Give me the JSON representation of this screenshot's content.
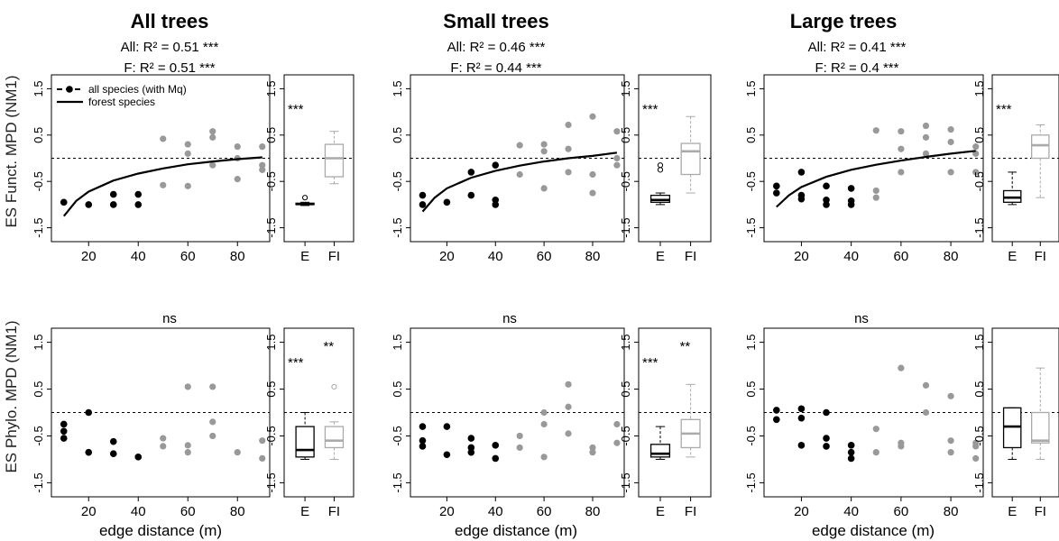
{
  "figure": {
    "ylabel_top": "ES Funct. MPD (NM1)",
    "ylabel_bottom": "ES Phylo. MPD (NM1)",
    "xlabel": "edge distance (m)",
    "legend": {
      "entries": [
        "all species (with Mq)",
        "forest species"
      ]
    }
  },
  "panels": [
    {
      "title": "All trees",
      "stats_all": "All: R² =  0.51 ***",
      "stats_f": "F: R² =  0.51 ***",
      "bottom_label": "ns",
      "box_sig_top": [
        "***",
        ""
      ],
      "box_sig_bottom": [
        "***",
        "**"
      ]
    },
    {
      "title": "Small trees",
      "stats_all": "All: R² =  0.46 ***",
      "stats_f": "F: R² =  0.44 ***",
      "bottom_label": "ns",
      "box_sig_top": [
        "***",
        ""
      ],
      "box_sig_bottom": [
        "***",
        "**"
      ]
    },
    {
      "title": "Large trees",
      "stats_all": "All: R² =  0.41 ***",
      "stats_f": "F: R² =  0.4 ***",
      "bottom_label": "ns",
      "box_sig_top": [
        "***",
        ""
      ],
      "box_sig_bottom": [
        "",
        ""
      ]
    }
  ],
  "chart_data": {
    "type": "scatter",
    "xlim": [
      5,
      93
    ],
    "ylim": [
      -1.8,
      1.8
    ],
    "xticks": [
      20,
      40,
      60,
      80
    ],
    "yticks": [
      -1.5,
      -0.5,
      0.5,
      1.5
    ],
    "ytick_labels": [
      "-1.5",
      "-0.5",
      "0.5",
      "1.5"
    ],
    "reference_line_y": 0,
    "box_categories": [
      "E",
      "FI"
    ],
    "colors": {
      "edge": "#000000",
      "interior": "#999999",
      "interior_box": "#aaaaaa"
    },
    "scatter": [
      {
        "top": {
          "edge": [
            [
              10,
              -0.95
            ],
            [
              20,
              -1.0
            ],
            [
              30,
              -0.78
            ],
            [
              30,
              -1.0
            ],
            [
              40,
              -0.78
            ],
            [
              40,
              -1.0
            ]
          ],
          "interior": [
            [
              50,
              0.42
            ],
            [
              50,
              -0.58
            ],
            [
              60,
              0.3
            ],
            [
              60,
              0.1
            ],
            [
              60,
              -0.6
            ],
            [
              70,
              0.58
            ],
            [
              70,
              0.45
            ],
            [
              70,
              -0.15
            ],
            [
              80,
              0.25
            ],
            [
              80,
              0.0
            ],
            [
              80,
              -0.45
            ],
            [
              90,
              0.25
            ],
            [
              90,
              -0.25
            ],
            [
              90,
              -0.15
            ]
          ],
          "curve": [
            [
              10,
              -1.25
            ],
            [
              15,
              -0.92
            ],
            [
              20,
              -0.72
            ],
            [
              30,
              -0.48
            ],
            [
              40,
              -0.33
            ],
            [
              50,
              -0.22
            ],
            [
              60,
              -0.13
            ],
            [
              70,
              -0.07
            ],
            [
              80,
              -0.02
            ],
            [
              90,
              0.02
            ]
          ]
        },
        "bottom": {
          "edge": [
            [
              10,
              -0.25
            ],
            [
              10,
              -0.4
            ],
            [
              10,
              -0.55
            ],
            [
              20,
              0.0
            ],
            [
              20,
              -0.85
            ],
            [
              30,
              -0.62
            ],
            [
              30,
              -0.88
            ],
            [
              40,
              -0.95
            ]
          ],
          "interior": [
            [
              50,
              -0.55
            ],
            [
              50,
              -0.72
            ],
            [
              60,
              0.55
            ],
            [
              60,
              -0.7
            ],
            [
              60,
              -0.85
            ],
            [
              70,
              0.55
            ],
            [
              70,
              -0.2
            ],
            [
              70,
              -0.5
            ],
            [
              80,
              -0.85
            ],
            [
              90,
              -0.6
            ],
            [
              90,
              -0.98
            ]
          ]
        }
      },
      {
        "top": {
          "edge": [
            [
              10,
              -0.8
            ],
            [
              10,
              -1.0
            ],
            [
              20,
              -0.95
            ],
            [
              30,
              -0.3
            ],
            [
              30,
              -0.8
            ],
            [
              40,
              -0.15
            ],
            [
              40,
              -0.9
            ],
            [
              40,
              -1.0
            ]
          ],
          "interior": [
            [
              50,
              0.28
            ],
            [
              50,
              -0.35
            ],
            [
              60,
              0.3
            ],
            [
              60,
              0.15
            ],
            [
              60,
              -0.65
            ],
            [
              70,
              0.72
            ],
            [
              70,
              0.2
            ],
            [
              70,
              -0.3
            ],
            [
              80,
              0.9
            ],
            [
              80,
              -0.35
            ],
            [
              80,
              -0.75
            ],
            [
              90,
              0.58
            ],
            [
              90,
              0.0
            ],
            [
              90,
              -0.15
            ]
          ],
          "curve": [
            [
              10,
              -1.15
            ],
            [
              15,
              -0.85
            ],
            [
              20,
              -0.65
            ],
            [
              30,
              -0.42
            ],
            [
              40,
              -0.27
            ],
            [
              50,
              -0.16
            ],
            [
              60,
              -0.07
            ],
            [
              70,
              0.0
            ],
            [
              80,
              0.05
            ],
            [
              90,
              0.12
            ]
          ]
        },
        "bottom": {
          "edge": [
            [
              10,
              -0.3
            ],
            [
              10,
              -0.6
            ],
            [
              10,
              -0.72
            ],
            [
              20,
              -0.3
            ],
            [
              20,
              -0.9
            ],
            [
              30,
              -0.55
            ],
            [
              30,
              -0.75
            ],
            [
              30,
              -0.85
            ],
            [
              40,
              -0.7
            ],
            [
              40,
              -0.98
            ]
          ],
          "interior": [
            [
              50,
              -0.5
            ],
            [
              50,
              -0.75
            ],
            [
              60,
              0.0
            ],
            [
              60,
              -0.25
            ],
            [
              60,
              -0.95
            ],
            [
              70,
              0.6
            ],
            [
              70,
              0.12
            ],
            [
              70,
              -0.45
            ],
            [
              80,
              -0.75
            ],
            [
              80,
              -0.85
            ],
            [
              90,
              -0.25
            ],
            [
              90,
              -0.65
            ]
          ]
        }
      },
      {
        "top": {
          "edge": [
            [
              10,
              -0.6
            ],
            [
              10,
              -0.75
            ],
            [
              20,
              -0.3
            ],
            [
              20,
              -0.8
            ],
            [
              20,
              -0.88
            ],
            [
              30,
              -0.6
            ],
            [
              30,
              -0.9
            ],
            [
              30,
              -1.0
            ],
            [
              40,
              -0.65
            ],
            [
              40,
              -0.92
            ],
            [
              40,
              -1.0
            ]
          ],
          "interior": [
            [
              50,
              0.6
            ],
            [
              50,
              -0.7
            ],
            [
              50,
              -0.85
            ],
            [
              60,
              0.58
            ],
            [
              60,
              0.2
            ],
            [
              60,
              -0.3
            ],
            [
              70,
              0.7
            ],
            [
              70,
              0.45
            ],
            [
              70,
              0.1
            ],
            [
              80,
              0.62
            ],
            [
              80,
              0.35
            ],
            [
              80,
              -0.3
            ],
            [
              90,
              0.25
            ],
            [
              90,
              0.1
            ],
            [
              90,
              -0.3
            ]
          ],
          "curve": [
            [
              10,
              -1.05
            ],
            [
              15,
              -0.8
            ],
            [
              20,
              -0.62
            ],
            [
              30,
              -0.4
            ],
            [
              40,
              -0.25
            ],
            [
              50,
              -0.14
            ],
            [
              60,
              -0.05
            ],
            [
              70,
              0.03
            ],
            [
              80,
              0.1
            ],
            [
              90,
              0.16
            ]
          ]
        },
        "bottom": {
          "edge": [
            [
              10,
              0.05
            ],
            [
              10,
              -0.15
            ],
            [
              20,
              0.08
            ],
            [
              20,
              -0.12
            ],
            [
              20,
              -0.7
            ],
            [
              30,
              0.0
            ],
            [
              30,
              -0.55
            ],
            [
              30,
              -0.72
            ],
            [
              40,
              -0.7
            ],
            [
              40,
              -0.85
            ],
            [
              40,
              -0.98
            ]
          ],
          "interior": [
            [
              50,
              -0.35
            ],
            [
              50,
              -0.85
            ],
            [
              60,
              0.95
            ],
            [
              60,
              -0.65
            ],
            [
              60,
              -0.72
            ],
            [
              70,
              0.58
            ],
            [
              70,
              0.0
            ],
            [
              80,
              0.35
            ],
            [
              80,
              -0.6
            ],
            [
              80,
              -0.85
            ],
            [
              90,
              -0.65
            ],
            [
              90,
              -0.72
            ],
            [
              90,
              -0.98
            ]
          ]
        }
      }
    ],
    "boxes": [
      {
        "top": {
          "E": {
            "min": -1.02,
            "q1": -1.0,
            "median": -0.99,
            "q3": -0.97,
            "max": -0.95,
            "outliers": [
              -0.85
            ]
          },
          "FI": {
            "min": -0.55,
            "q1": -0.4,
            "median": 0.0,
            "q3": 0.3,
            "max": 0.58,
            "outliers": []
          }
        },
        "bottom": {
          "E": {
            "min": -1.0,
            "q1": -0.95,
            "median": -0.8,
            "q3": -0.3,
            "max": 0.0,
            "outliers": []
          },
          "FI": {
            "min": -1.0,
            "q1": -0.75,
            "median": -0.6,
            "q3": -0.3,
            "max": -0.2,
            "outliers": [
              0.55
            ]
          }
        }
      },
      {
        "top": {
          "E": {
            "min": -1.0,
            "q1": -0.95,
            "median": -0.9,
            "q3": -0.8,
            "max": -0.75,
            "outliers": [
              -0.25,
              -0.15
            ]
          },
          "FI": {
            "min": -0.75,
            "q1": -0.35,
            "median": 0.15,
            "q3": 0.32,
            "max": 0.9,
            "outliers": []
          }
        },
        "bottom": {
          "E": {
            "min": -1.0,
            "q1": -0.95,
            "median": -0.88,
            "q3": -0.68,
            "max": -0.3,
            "outliers": []
          },
          "FI": {
            "min": -0.95,
            "q1": -0.75,
            "median": -0.45,
            "q3": -0.15,
            "max": 0.6,
            "outliers": []
          }
        }
      },
      {
        "top": {
          "E": {
            "min": -1.0,
            "q1": -0.95,
            "median": -0.85,
            "q3": -0.7,
            "max": -0.3,
            "outliers": []
          },
          "FI": {
            "min": -0.85,
            "q1": 0.0,
            "median": 0.28,
            "q3": 0.5,
            "max": 0.72,
            "outliers": []
          }
        },
        "bottom": {
          "E": {
            "min": -1.0,
            "q1": -0.75,
            "median": -0.3,
            "q3": 0.1,
            "max": 0.1,
            "outliers": []
          },
          "FI": {
            "min": -1.0,
            "q1": -0.65,
            "median": -0.6,
            "q3": 0.0,
            "max": 0.95,
            "outliers": []
          }
        }
      }
    ]
  }
}
